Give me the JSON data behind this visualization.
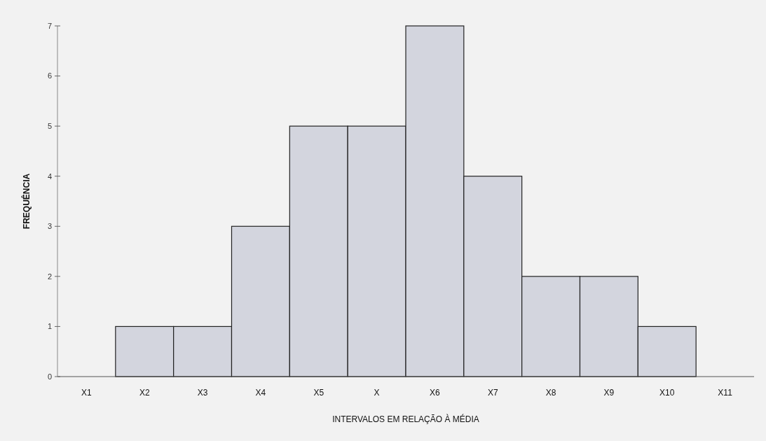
{
  "chart_data": {
    "type": "bar",
    "xlabel": "INTERVALOS EM RELAÇÃO À MÉDIA",
    "ylabel": "FREQUÊNCIA",
    "categories": [
      "X1",
      "X2",
      "X3",
      "X4",
      "X5",
      "X",
      "X6",
      "X7",
      "X8",
      "X9",
      "X10",
      "X11"
    ],
    "values": [
      0,
      1,
      1,
      3,
      5,
      5,
      7,
      4,
      2,
      2,
      1,
      0
    ],
    "color": "#d3d5de",
    "ylim": [
      0,
      7
    ],
    "yticks": [
      0,
      1,
      2,
      3,
      4,
      5,
      6,
      7
    ],
    "grid": false
  }
}
